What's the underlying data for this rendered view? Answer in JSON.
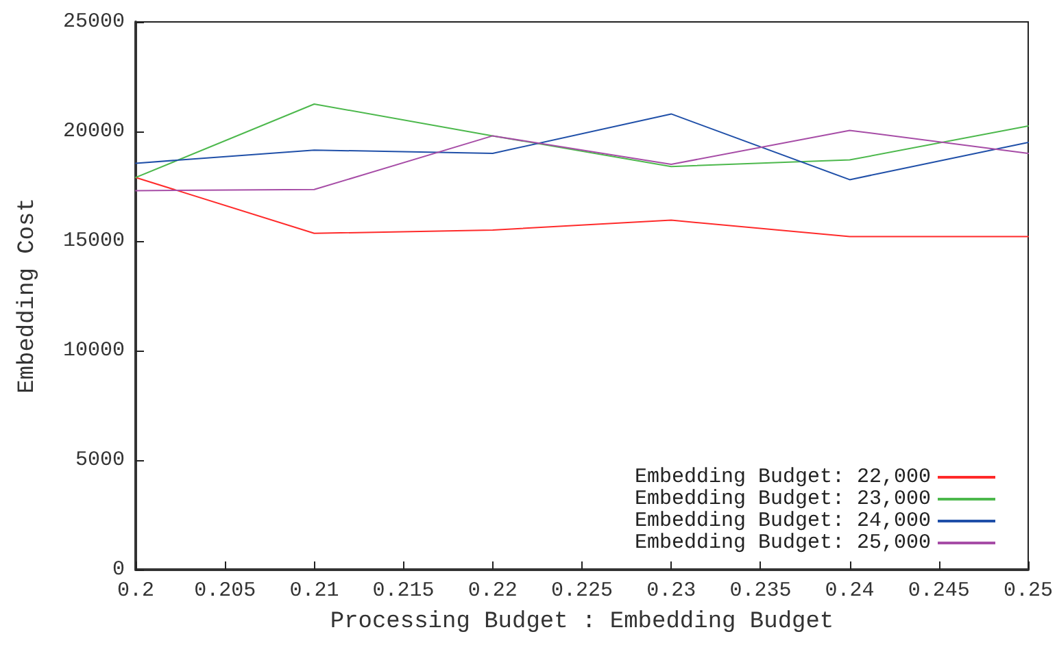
{
  "chart_data": {
    "type": "line",
    "xlabel": "Processing Budget : Embedding Budget",
    "ylabel": "Embedding Cost",
    "x": [
      0.2,
      0.21,
      0.22,
      0.23,
      0.24,
      0.25
    ],
    "series": [
      {
        "name": "Embedding Budget: 22,000",
        "color": "#ff2a2a",
        "values": [
          17900,
          15350,
          15500,
          15950,
          15200,
          15200
        ]
      },
      {
        "name": "Embedding Budget: 23,000",
        "color": "#4cb84c",
        "values": [
          17900,
          21250,
          19800,
          18400,
          18700,
          20250
        ]
      },
      {
        "name": "Embedding Budget: 24,000",
        "color": "#1f4fa8",
        "values": [
          18550,
          19150,
          19000,
          20800,
          17800,
          19500
        ]
      },
      {
        "name": "Embedding Budget: 25,000",
        "color": "#a64ca6",
        "values": [
          17300,
          17350,
          19800,
          18500,
          20050,
          19000
        ]
      }
    ],
    "xlim": [
      0.2,
      0.25
    ],
    "xticks": [
      0.2,
      0.205,
      0.21,
      0.215,
      0.22,
      0.225,
      0.23,
      0.235,
      0.24,
      0.245,
      0.25
    ],
    "ylim": [
      0,
      25000
    ],
    "yticks": [
      0,
      5000,
      10000,
      15000,
      20000,
      25000
    ],
    "grid": false,
    "legend": "bottom right",
    "marker": "none",
    "line_style": "solid"
  }
}
